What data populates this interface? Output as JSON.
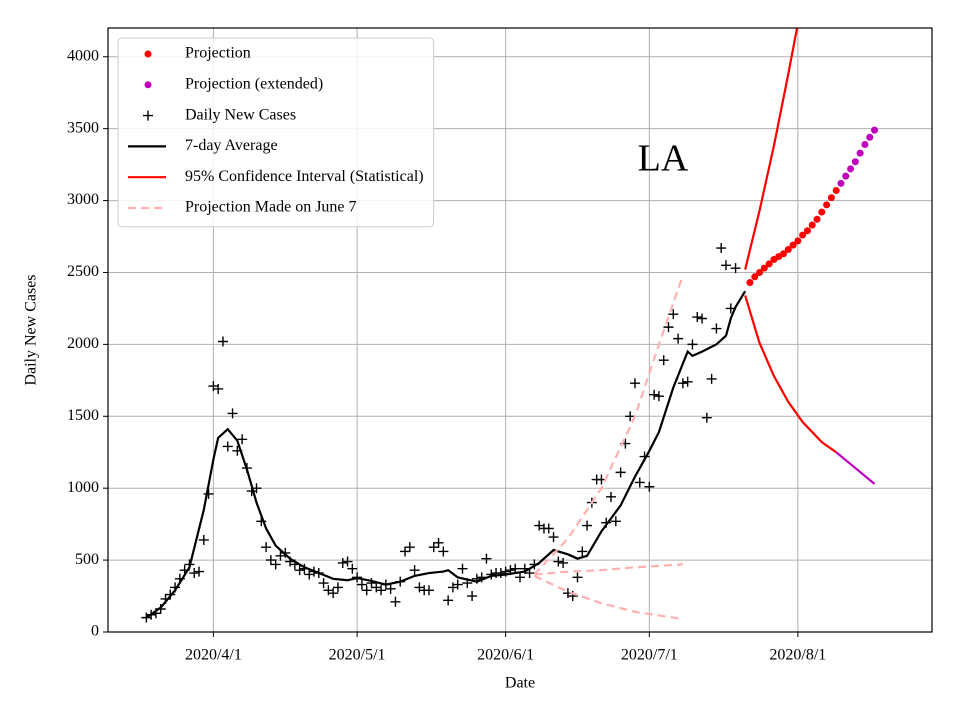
{
  "chart_data": {
    "type": "line",
    "annotation": "LA",
    "xlabel": "Date",
    "ylabel": "Daily New Cases",
    "xlim": [
      "2020/3/10",
      "2020/8/29"
    ],
    "xticks": [
      "2020/4/1",
      "2020/5/1",
      "2020/6/1",
      "2020/7/1",
      "2020/8/1"
    ],
    "ylim": [
      0,
      4200
    ],
    "yticks": [
      0,
      500,
      1000,
      1500,
      2000,
      2500,
      3000,
      3500,
      4000
    ],
    "grid": true,
    "legend": "upper left",
    "series": [
      {
        "name": "Projection",
        "color": "#ff0000",
        "marker": "o",
        "x": [
          "2020/7/22",
          "2020/7/23",
          "2020/7/24",
          "2020/7/25",
          "2020/7/26",
          "2020/7/27",
          "2020/7/28",
          "2020/7/29",
          "2020/7/30",
          "2020/7/31",
          "2020/8/1",
          "2020/8/2",
          "2020/8/3",
          "2020/8/4",
          "2020/8/5",
          "2020/8/6",
          "2020/8/7",
          "2020/8/8",
          "2020/8/9"
        ],
        "values": [
          2430,
          2470,
          2500,
          2530,
          2560,
          2590,
          2610,
          2630,
          2660,
          2690,
          2720,
          2760,
          2790,
          2830,
          2870,
          2920,
          2970,
          3020,
          3070
        ]
      },
      {
        "name": "Projection (extended)",
        "color": "#bf00bf",
        "marker": "o",
        "x": [
          "2020/8/10",
          "2020/8/11",
          "2020/8/12",
          "2020/8/13",
          "2020/8/14",
          "2020/8/15",
          "2020/8/16",
          "2020/8/17"
        ],
        "values": [
          3120,
          3170,
          3220,
          3270,
          3330,
          3390,
          3440,
          3490
        ]
      },
      {
        "name": "Daily New Cases",
        "color": "#000000",
        "marker": "+",
        "x": [
          "2020/3/18",
          "2020/3/19",
          "2020/3/20",
          "2020/3/21",
          "2020/3/22",
          "2020/3/23",
          "2020/3/24",
          "2020/3/25",
          "2020/3/26",
          "2020/3/27",
          "2020/3/28",
          "2020/3/29",
          "2020/3/30",
          "2020/3/31",
          "2020/4/1",
          "2020/4/2",
          "2020/4/3",
          "2020/4/4",
          "2020/4/5",
          "2020/4/6",
          "2020/4/7",
          "2020/4/8",
          "2020/4/9",
          "2020/4/10",
          "2020/4/11",
          "2020/4/12",
          "2020/4/13",
          "2020/4/14",
          "2020/4/15",
          "2020/4/16",
          "2020/4/17",
          "2020/4/18",
          "2020/4/19",
          "2020/4/20",
          "2020/4/21",
          "2020/4/22",
          "2020/4/23",
          "2020/4/24",
          "2020/4/25",
          "2020/4/26",
          "2020/4/27",
          "2020/4/28",
          "2020/4/29",
          "2020/4/30",
          "2020/5/1",
          "2020/5/2",
          "2020/5/3",
          "2020/5/4",
          "2020/5/5",
          "2020/5/6",
          "2020/5/7",
          "2020/5/8",
          "2020/5/9",
          "2020/5/10",
          "2020/5/11",
          "2020/5/12",
          "2020/5/13",
          "2020/5/14",
          "2020/5/15",
          "2020/5/16",
          "2020/5/17",
          "2020/5/18",
          "2020/5/19",
          "2020/5/20",
          "2020/5/21",
          "2020/5/22",
          "2020/5/23",
          "2020/5/24",
          "2020/5/25",
          "2020/5/26",
          "2020/5/27",
          "2020/5/28",
          "2020/5/29",
          "2020/5/30",
          "2020/5/31",
          "2020/6/1",
          "2020/6/2",
          "2020/6/3",
          "2020/6/4",
          "2020/6/5",
          "2020/6/6",
          "2020/6/7",
          "2020/6/8",
          "2020/6/9",
          "2020/6/10",
          "2020/6/11",
          "2020/6/12",
          "2020/6/13",
          "2020/6/14",
          "2020/6/15",
          "2020/6/16",
          "2020/6/17",
          "2020/6/18",
          "2020/6/19",
          "2020/6/20",
          "2020/6/21",
          "2020/6/22",
          "2020/6/23",
          "2020/6/24",
          "2020/6/25",
          "2020/6/26",
          "2020/6/27",
          "2020/6/28",
          "2020/6/29",
          "2020/6/30",
          "2020/7/1",
          "2020/7/2",
          "2020/7/3",
          "2020/7/4",
          "2020/7/5",
          "2020/7/6",
          "2020/7/7",
          "2020/7/8",
          "2020/7/9",
          "2020/7/10",
          "2020/7/11",
          "2020/7/12",
          "2020/7/13",
          "2020/7/14",
          "2020/7/15",
          "2020/7/16",
          "2020/7/17",
          "2020/7/18",
          "2020/7/19"
        ],
        "values": [
          100,
          120,
          130,
          160,
          230,
          260,
          310,
          370,
          430,
          470,
          410,
          420,
          640,
          960,
          1710,
          1690,
          2020,
          1290,
          1520,
          1260,
          1340,
          1140,
          980,
          1000,
          770,
          590,
          500,
          470,
          530,
          550,
          490,
          470,
          430,
          440,
          400,
          420,
          410,
          340,
          290,
          270,
          310,
          480,
          490,
          440,
          380,
          330,
          290,
          340,
          310,
          290,
          330,
          300,
          210,
          350,
          560,
          590,
          430,
          310,
          290,
          290,
          590,
          620,
          560,
          220,
          310,
          330,
          440,
          340,
          250,
          370,
          380,
          510,
          400,
          410,
          410,
          420,
          430,
          440,
          380,
          440,
          410,
          470,
          740,
          720,
          720,
          660,
          490,
          480,
          270,
          250,
          380,
          560,
          740,
          900,
          1060,
          1060,
          760,
          940,
          770,
          1110,
          1310,
          1500,
          1730,
          1040,
          1220,
          1010,
          1650,
          1640,
          1890,
          2120,
          2210,
          2040,
          1730,
          1740,
          2000,
          2190,
          2180,
          1490,
          1760,
          2110,
          2670,
          2550,
          2250,
          2530
        ]
      },
      {
        "name": "7-day Average",
        "color": "#000000",
        "line": "solid",
        "x": [
          "2020/3/18",
          "2020/3/21",
          "2020/3/24",
          "2020/3/27",
          "2020/3/30",
          "2020/4/1",
          "2020/4/2",
          "2020/4/4",
          "2020/4/6",
          "2020/4/8",
          "2020/4/10",
          "2020/4/12",
          "2020/4/14",
          "2020/4/17",
          "2020/4/20",
          "2020/4/23",
          "2020/4/26",
          "2020/4/29",
          "2020/5/1",
          "2020/5/4",
          "2020/5/7",
          "2020/5/10",
          "2020/5/13",
          "2020/5/16",
          "2020/5/19",
          "2020/5/20",
          "2020/5/22",
          "2020/5/26",
          "2020/5/29",
          "2020/6/1",
          "2020/6/5",
          "2020/6/8",
          "2020/6/11",
          "2020/6/14",
          "2020/6/16",
          "2020/6/18",
          "2020/6/21",
          "2020/6/25",
          "2020/6/28",
          "2020/7/1",
          "2020/7/3",
          "2020/7/6",
          "2020/7/9",
          "2020/7/10",
          "2020/7/12",
          "2020/7/15",
          "2020/7/17",
          "2020/7/18",
          "2020/7/19",
          "2020/7/21"
        ],
        "values": [
          100,
          170,
          290,
          450,
          850,
          1200,
          1350,
          1410,
          1330,
          1130,
          900,
          720,
          600,
          510,
          450,
          410,
          370,
          360,
          375,
          355,
          330,
          350,
          390,
          410,
          420,
          430,
          380,
          350,
          390,
          400,
          420,
          480,
          570,
          540,
          510,
          530,
          700,
          880,
          1080,
          1260,
          1390,
          1700,
          1950,
          1920,
          1950,
          2000,
          2060,
          2180,
          2260,
          2370
        ]
      },
      {
        "name": "95% Confidence Interval (Statistical)",
        "color": "#ff0000",
        "line": "solid",
        "x": [
          "2020/7/21",
          "2020/7/24",
          "2020/7/27",
          "2020/7/30",
          "2020/8/1"
        ],
        "values": [
          2520,
          2930,
          3380,
          3880,
          4230
        ]
      },
      {
        "color": "#ff0000",
        "line": "solid",
        "x": [
          "2020/7/21",
          "2020/7/24",
          "2020/7/27",
          "2020/7/30",
          "2020/8/2",
          "2020/8/6",
          "2020/8/9"
        ],
        "values": [
          2340,
          2010,
          1780,
          1600,
          1460,
          1320,
          1250
        ]
      },
      {
        "color": "#bf00bf",
        "line": "solid",
        "x": [
          "2020/8/9",
          "2020/8/13",
          "2020/8/17"
        ],
        "values": [
          1250,
          1140,
          1030
        ]
      },
      {
        "name": "Projection Made on June 7",
        "color": "#ffb0b0",
        "line": "dashed",
        "x": [
          "2020/6/7",
          "2020/6/14",
          "2020/6/21",
          "2020/6/28",
          "2020/7/3",
          "2020/7/8"
        ],
        "values": [
          400,
          650,
          1000,
          1500,
          2000,
          2480
        ]
      },
      {
        "color": "#ffb0b0",
        "line": "dashed",
        "x": [
          "2020/6/7",
          "2020/6/14",
          "2020/6/21",
          "2020/6/28",
          "2020/7/8"
        ],
        "values": [
          400,
          420,
          430,
          450,
          470
        ]
      },
      {
        "color": "#ffb0b0",
        "line": "dashed",
        "x": [
          "2020/6/7",
          "2020/6/14",
          "2020/6/21",
          "2020/6/28",
          "2020/7/8"
        ],
        "values": [
          390,
          280,
          200,
          140,
          90
        ]
      }
    ]
  }
}
